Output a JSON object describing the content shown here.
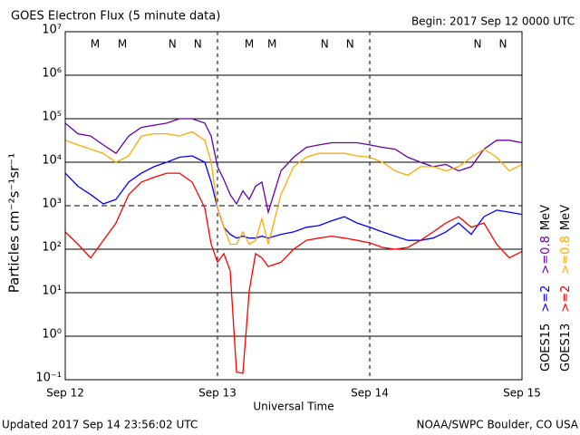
{
  "chart_data": {
    "type": "line",
    "title": "GOES Electron Flux (5 minute data)",
    "subtitle": "Begin: 2017 Sep 12 0000 UTC",
    "updated": "Updated 2017 Sep 14 23:56:02 UTC",
    "credit": "NOAA/SWPC Boulder, CO USA",
    "xlabel": "Universal Time",
    "ylabel": "Particles cm⁻²s⁻¹sr⁻¹",
    "log_y": true,
    "grid": true,
    "threshold": 1000,
    "xlim": [
      0,
      72
    ],
    "xticks": [
      {
        "value": 0,
        "label": "Sep 12"
      },
      {
        "value": 24,
        "label": "Sep 13"
      },
      {
        "value": 48,
        "label": "Sep 14"
      },
      {
        "value": 72,
        "label": "Sep 15"
      }
    ],
    "ylim": [
      0.1,
      10000000
    ],
    "yticks": [
      {
        "value": 0.1,
        "label": "10⁻¹"
      },
      {
        "value": 1,
        "label": "10⁰"
      },
      {
        "value": 10,
        "label": "10¹"
      },
      {
        "value": 100,
        "label": "10²"
      },
      {
        "value": 1000,
        "label": "10³"
      },
      {
        "value": 10000,
        "label": "10⁴"
      },
      {
        "value": 100000,
        "label": "10⁵"
      },
      {
        "value": 1000000,
        "label": "10⁶"
      },
      {
        "value": 10000000,
        "label": "10⁷"
      }
    ],
    "x": [
      0,
      2,
      4,
      6,
      8,
      10,
      12,
      14,
      16,
      18,
      20,
      22,
      23,
      24,
      25,
      26,
      27,
      28,
      29,
      30,
      31,
      32,
      34,
      36,
      38,
      40,
      42,
      44,
      46,
      48,
      50,
      52,
      54,
      56,
      58,
      60,
      62,
      64,
      66,
      68,
      70,
      72
    ],
    "satellites": [
      {
        "name": "GOES15",
        "unit": "MeV",
        "series": [
          {
            "name": ">=2",
            "color": "#0000ff",
            "values": [
              5600,
              2800,
              1800,
              1100,
              1400,
              3500,
              5600,
              7900,
              10000,
              13000,
              14000,
              10000,
              3500,
              890,
              320,
              220,
              180,
              200,
              180,
              180,
              200,
              180,
              220,
              250,
              320,
              350,
              450,
              560,
              400,
              320,
              250,
              200,
              160,
              160,
              180,
              250,
              400,
              220,
              560,
              790,
              710,
              630
            ]
          },
          {
            "name": ">=0.8",
            "color": "#6600aa",
            "values": [
              79000,
              45000,
              40000,
              25000,
              16000,
              40000,
              63000,
              71000,
              79000,
              100000,
              100000,
              79000,
              40000,
              7900,
              4000,
              1800,
              1100,
              2200,
              1400,
              2800,
              3500,
              710,
              6300,
              13000,
              22000,
              25000,
              28000,
              28000,
              28000,
              25000,
              22000,
              20000,
              13000,
              10000,
              7900,
              8900,
              6300,
              7900,
              20000,
              32000,
              32000,
              28000
            ]
          }
        ]
      },
      {
        "name": "GOES13",
        "unit": "MeV",
        "series": [
          {
            "name": ">=2",
            "color": "#ff0000",
            "values": [
              250,
              130,
              63,
              160,
              400,
              1800,
              3500,
              4500,
              5600,
              5600,
              3500,
              890,
              130,
              50,
              79,
              32,
              0.15,
              0.14,
              11,
              79,
              63,
              40,
              50,
              100,
              160,
              180,
              200,
              180,
              160,
              140,
              110,
              100,
              110,
              160,
              250,
              400,
              560,
              320,
              400,
              130,
              63,
              89
            ]
          },
          {
            "name": ">=0.8",
            "color": "#ffaa00",
            "values": [
              32000,
              25000,
              20000,
              16000,
              10000,
              14000,
              40000,
              45000,
              45000,
              40000,
              50000,
              32000,
              10000,
              890,
              320,
              130,
              130,
              250,
              130,
              160,
              500,
              130,
              1800,
              7900,
              13000,
              16000,
              16000,
              16000,
              14000,
              13000,
              10000,
              6300,
              5000,
              7900,
              7900,
              6300,
              7900,
              13000,
              20000,
              13000,
              6300,
              8900
            ]
          }
        ]
      }
    ],
    "markers": [
      {
        "label": "M",
        "x": 4.7,
        "color": "#ff0000"
      },
      {
        "label": "M",
        "x": 9,
        "color": "#0000ff"
      },
      {
        "label": "N",
        "x": 16.9,
        "color": "#ff0000"
      },
      {
        "label": "N",
        "x": 20.9,
        "color": "#0000ff"
      },
      {
        "label": "M",
        "x": 29,
        "color": "#ff0000"
      },
      {
        "label": "M",
        "x": 32.6,
        "color": "#0000ff"
      },
      {
        "label": "N",
        "x": 40.9,
        "color": "#ff0000"
      },
      {
        "label": "N",
        "x": 44.9,
        "color": "#0000ff"
      },
      {
        "label": "N",
        "x": 65,
        "color": "#ff0000"
      },
      {
        "label": "N",
        "x": 69,
        "color": "#0000ff"
      }
    ]
  }
}
